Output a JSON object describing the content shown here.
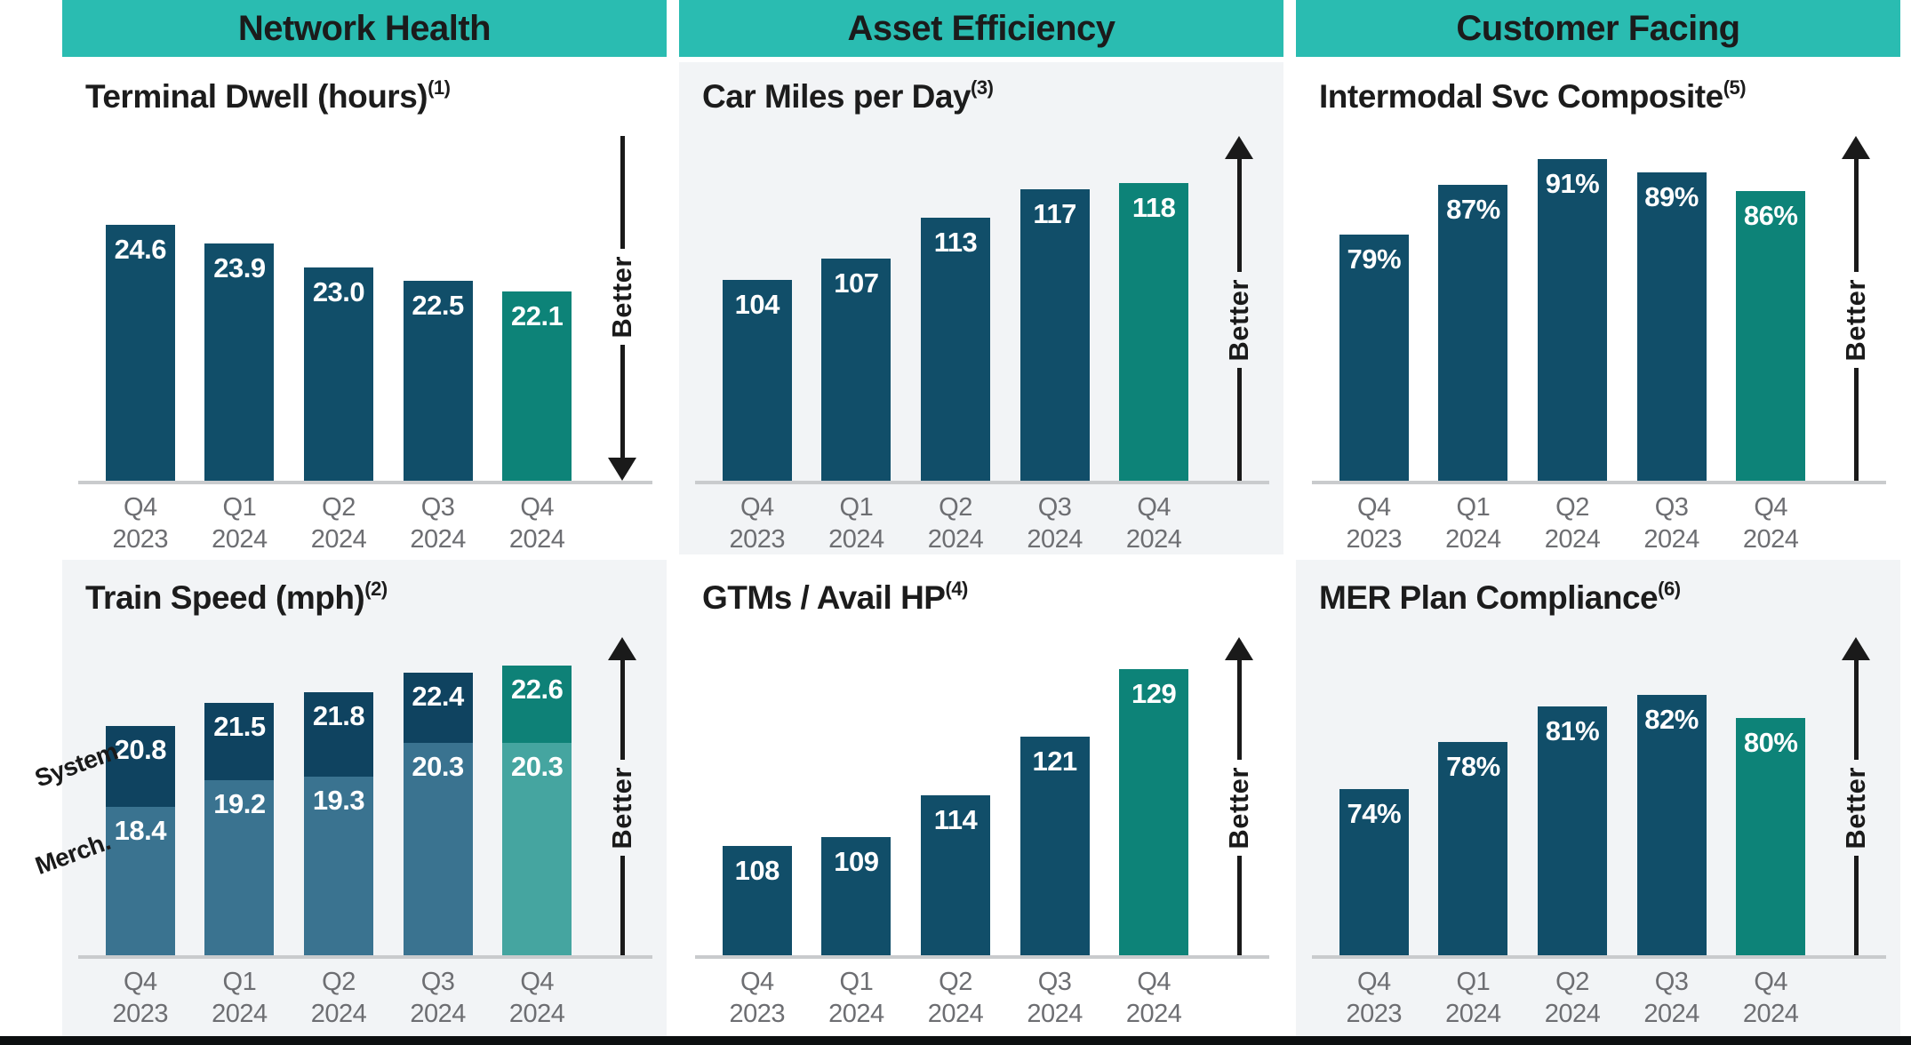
{
  "labels": {
    "better": "Better"
  },
  "colors": {
    "header_bg": "#2abcb1",
    "header_text": "#1b1b1b",
    "bar_navy": "#114e69",
    "bar_teal": "#0d8378",
    "stack_top_navy": "#0f4360",
    "stack_bottom_navy": "#3a7390",
    "stack_top_teal": "#0e8177",
    "stack_bottom_teal": "#45a5a0",
    "axis_text": "#6d6e72",
    "baseline": "#c9cbcd",
    "value_text": "#ffffff",
    "arrow": "#1a1a1a",
    "panel_gray": "#f2f4f6",
    "panel_white": "#ffffff",
    "footer_bar": "#0c0f10"
  },
  "columns": [
    {
      "header": "Network Health",
      "charts": [
        0,
        1
      ]
    },
    {
      "header": "Asset Efficiency",
      "charts": [
        2,
        3
      ]
    },
    {
      "header": "Customer Facing",
      "charts": [
        4,
        5
      ]
    }
  ],
  "chart_data": [
    {
      "id": "terminal-dwell",
      "type": "bar",
      "title": "Terminal Dwell (hours)",
      "title_sup": "(1)",
      "categories": [
        {
          "q": "Q4",
          "year": "2023"
        },
        {
          "q": "Q1",
          "year": "2024"
        },
        {
          "q": "Q2",
          "year": "2024"
        },
        {
          "q": "Q3",
          "year": "2024"
        },
        {
          "q": "Q4",
          "year": "2024"
        }
      ],
      "values": [
        24.6,
        23.9,
        23.0,
        22.5,
        22.1
      ],
      "labels": [
        "24.6",
        "23.9",
        "23.0",
        "22.5",
        "22.1"
      ],
      "ylim": [
        15,
        28
      ],
      "better": "down",
      "highlight_last": true,
      "panel": "white",
      "grid": false,
      "legend": "none"
    },
    {
      "id": "train-speed",
      "type": "stacked-bar",
      "title": "Train Speed (mph)",
      "title_sup": "(2)",
      "categories": [
        {
          "q": "Q4",
          "year": "2023"
        },
        {
          "q": "Q1",
          "year": "2024"
        },
        {
          "q": "Q2",
          "year": "2024"
        },
        {
          "q": "Q3",
          "year": "2024"
        },
        {
          "q": "Q4",
          "year": "2024"
        }
      ],
      "series": [
        {
          "name": "System",
          "values": [
            20.8,
            21.5,
            21.8,
            22.4,
            22.6
          ],
          "labels": [
            "20.8",
            "21.5",
            "21.8",
            "22.4",
            "22.6"
          ]
        },
        {
          "name": "Merch.",
          "values": [
            18.4,
            19.2,
            19.3,
            20.3,
            20.3
          ],
          "labels": [
            "18.4",
            "19.2",
            "19.3",
            "20.3",
            "20.3"
          ]
        }
      ],
      "ylim": [
        14,
        23.5
      ],
      "better": "up",
      "highlight_last": true,
      "panel": "gray",
      "grid": false,
      "legend": "left-rotated"
    },
    {
      "id": "car-miles-per-day",
      "type": "bar",
      "title": "Car Miles per Day",
      "title_sup": "(3)",
      "categories": [
        {
          "q": "Q4",
          "year": "2023"
        },
        {
          "q": "Q1",
          "year": "2024"
        },
        {
          "q": "Q2",
          "year": "2024"
        },
        {
          "q": "Q3",
          "year": "2024"
        },
        {
          "q": "Q4",
          "year": "2024"
        }
      ],
      "values": [
        104,
        107,
        113,
        117,
        118
      ],
      "labels": [
        "104",
        "107",
        "113",
        "117",
        "118"
      ],
      "ylim": [
        75,
        125
      ],
      "better": "up",
      "highlight_last": true,
      "panel": "gray",
      "grid": false,
      "legend": "none"
    },
    {
      "id": "gtms-avail-hp",
      "type": "bar",
      "title": "GTMs / Avail HP",
      "title_sup": "(4)",
      "categories": [
        {
          "q": "Q4",
          "year": "2023"
        },
        {
          "q": "Q1",
          "year": "2024"
        },
        {
          "q": "Q2",
          "year": "2024"
        },
        {
          "q": "Q3",
          "year": "2024"
        },
        {
          "q": "Q4",
          "year": "2024"
        }
      ],
      "values": [
        108,
        109,
        114,
        121,
        129
      ],
      "labels": [
        "108",
        "109",
        "114",
        "121",
        "129"
      ],
      "ylim": [
        95,
        133
      ],
      "better": "up",
      "highlight_last": true,
      "panel": "white",
      "grid": false,
      "legend": "none"
    },
    {
      "id": "intermodal-svc-composite",
      "type": "bar",
      "title": "Intermodal Svc Composite",
      "title_sup": "(5)",
      "categories": [
        {
          "q": "Q4",
          "year": "2023"
        },
        {
          "q": "Q1",
          "year": "2024"
        },
        {
          "q": "Q2",
          "year": "2024"
        },
        {
          "q": "Q3",
          "year": "2024"
        },
        {
          "q": "Q4",
          "year": "2024"
        }
      ],
      "values": [
        79,
        87,
        91,
        89,
        86
      ],
      "labels": [
        "79%",
        "87%",
        "91%",
        "89%",
        "86%"
      ],
      "ylim": [
        40,
        95
      ],
      "better": "up",
      "highlight_last": true,
      "panel": "white",
      "grid": false,
      "legend": "none"
    },
    {
      "id": "mer-plan-compliance",
      "type": "bar",
      "title": "MER Plan Compliance",
      "title_sup": "(6)",
      "categories": [
        {
          "q": "Q4",
          "year": "2023"
        },
        {
          "q": "Q1",
          "year": "2024"
        },
        {
          "q": "Q2",
          "year": "2024"
        },
        {
          "q": "Q3",
          "year": "2024"
        },
        {
          "q": "Q4",
          "year": "2024"
        }
      ],
      "values": [
        74,
        78,
        81,
        82,
        80
      ],
      "labels": [
        "74%",
        "78%",
        "81%",
        "82%",
        "80%"
      ],
      "ylim": [
        60,
        87
      ],
      "better": "up",
      "highlight_last": true,
      "panel": "gray",
      "grid": false,
      "legend": "none"
    }
  ]
}
